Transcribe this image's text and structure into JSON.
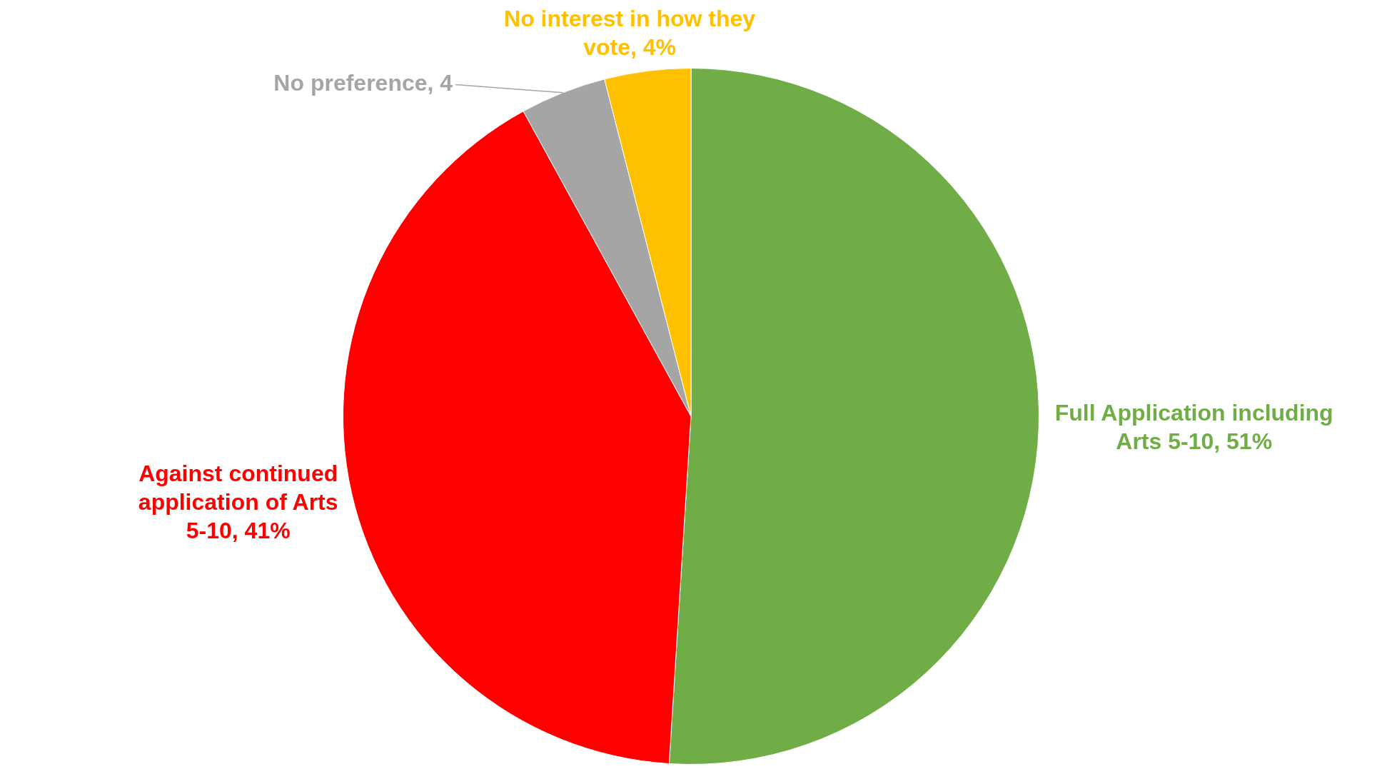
{
  "chart_data": {
    "type": "pie",
    "categories": [
      "Full Application including Arts 5-10",
      "Against continued application of Arts 5-10",
      "No preference",
      "No interest in how they vote"
    ],
    "values": [
      51,
      41,
      4,
      4
    ],
    "colors": [
      "#70ad47",
      "#ff0000",
      "#a5a5a5",
      "#ffc000"
    ],
    "value_labels": [
      "51%",
      "41%",
      "4",
      "4%"
    ],
    "legend": false
  }
}
